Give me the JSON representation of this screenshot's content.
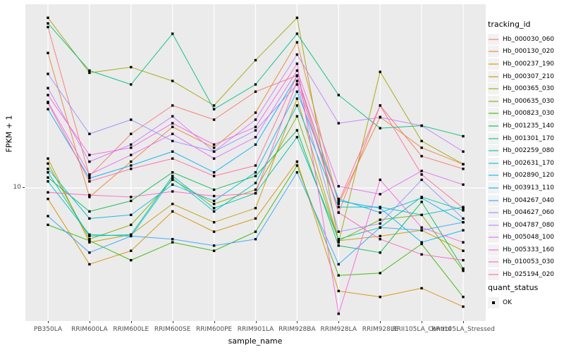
{
  "figure": {
    "panel": {
      "bg": "#EBEBEB",
      "grid_color": "#FFFFFF"
    },
    "x_axis": {
      "title": "sample_name",
      "tick_color": "#4D4D4D"
    },
    "y_axis": {
      "title": "FPKM + 1",
      "tick_label": "10",
      "tick_value": 10
    },
    "legend": {
      "tracking_title": "tracking_id",
      "quant_title": "quant_status",
      "quant_item_label": "OK",
      "key_bg": "#F2F2F2"
    }
  },
  "chart_data": {
    "type": "line",
    "title": "",
    "xlabel": "sample_name",
    "ylabel": "FPKM + 1",
    "yscale": "log10",
    "ytick_labels": [
      10
    ],
    "grid": "vertical-majors-and-y10",
    "legend_position": "right",
    "marker": {
      "shape": "square",
      "color": "#000000",
      "legend_label": "OK"
    },
    "categories": [
      "PB350LA",
      "RRIM600LA",
      "RRIM600LE",
      "RRIM600SE",
      "RRIM600PE",
      "RRIM901LA",
      "RRIM928BA",
      "RRIM928LA",
      "RRIM928LE",
      "RRII105LA_Control",
      "RRII105LA_Stressed"
    ],
    "series": [
      {
        "name": "Hb_000030_060",
        "color": "#F8766D",
        "values": [
          65.5,
          11.5,
          18.8,
          26.2,
          22.2,
          30.8,
          37.2,
          7.5,
          26.2,
          14.5,
          12.5
        ]
      },
      {
        "name": "Hb_000130_020",
        "color": "#EA8331",
        "values": [
          48.4,
          9.0,
          13.6,
          20.4,
          16.0,
          24.1,
          54.8,
          8.3,
          22.9,
          16.0,
          13.2
        ]
      },
      {
        "name": "Hb_000237_190",
        "color": "#D89000",
        "values": [
          8.8,
          4.1,
          4.8,
          7.6,
          6.0,
          7.0,
          13.6,
          3.0,
          2.8,
          3.1,
          2.5
        ]
      },
      {
        "name": "Hb_000307_210",
        "color": "#C09B00",
        "values": [
          14.1,
          5.3,
          5.8,
          8.3,
          6.7,
          7.9,
          28.4,
          5.4,
          5.7,
          6.1,
          4.8
        ]
      },
      {
        "name": "Hb_000365_030",
        "color": "#A3A500",
        "values": [
          73.0,
          38.4,
          41.0,
          34.9,
          26.2,
          44.5,
          73.0,
          5.3,
          38.8,
          17.3,
          13.2
        ]
      },
      {
        "name": "Hb_000635_030",
        "color": "#7CAE00",
        "values": [
          13.3,
          5.5,
          6.5,
          11.0,
          8.3,
          9.8,
          23.1,
          5.4,
          6.9,
          7.3,
          3.8
        ]
      },
      {
        "name": "Hb_000823_030",
        "color": "#39B600",
        "values": [
          6.5,
          5.4,
          4.3,
          5.3,
          4.8,
          6.0,
          13.0,
          3.6,
          3.7,
          5.2,
          2.8
        ]
      },
      {
        "name": "Hb_001235_140",
        "color": "#00BB4E",
        "values": [
          11.3,
          7.6,
          8.6,
          12.0,
          9.8,
          11.5,
          19.6,
          5.1,
          4.7,
          8.5,
          3.9
        ]
      },
      {
        "name": "Hb_001301_170",
        "color": "#00BF7D",
        "values": [
          68.4,
          39.4,
          33.5,
          60.6,
          25.1,
          33.5,
          60.6,
          29.6,
          20.1,
          20.7,
          18.3
        ]
      },
      {
        "name": "Hb_002259_080",
        "color": "#00C1A3",
        "values": [
          12.0,
          5.7,
          5.8,
          11.5,
          7.9,
          9.4,
          18.1,
          5.5,
          6.3,
          9.0,
          7.7
        ]
      },
      {
        "name": "Hb_002631_170",
        "color": "#00BFC4",
        "values": [
          10.8,
          5.8,
          5.7,
          11.2,
          7.6,
          10.6,
          26.2,
          8.0,
          8.0,
          7.3,
          8.0
        ]
      },
      {
        "name": "Hb_002890_120",
        "color": "#00BAE0",
        "values": [
          12.5,
          7.0,
          7.3,
          10.4,
          8.6,
          12.0,
          30.8,
          8.8,
          7.5,
          8.9,
          6.7
        ]
      },
      {
        "name": "Hb_003913_110",
        "color": "#00B0F6",
        "values": [
          25.1,
          11.2,
          13.0,
          15.3,
          12.0,
          16.6,
          37.0,
          8.6,
          7.9,
          5.3,
          6.1
        ]
      },
      {
        "name": "Hb_004267_040",
        "color": "#35A2FF",
        "values": [
          7.2,
          4.7,
          5.7,
          5.5,
          5.1,
          5.5,
          12.0,
          4.1,
          6.3,
          6.1,
          6.7
        ]
      },
      {
        "name": "Hb_004627_060",
        "color": "#9590FF",
        "values": [
          37.9,
          18.8,
          22.2,
          17.3,
          15.3,
          19.6,
          33.5,
          6.0,
          6.6,
          11.0,
          7.0
        ]
      },
      {
        "name": "Hb_004787_080",
        "color": "#C77CFF",
        "values": [
          32.1,
          13.6,
          16.6,
          23.1,
          15.3,
          22.2,
          47.5,
          21.3,
          22.8,
          20.7,
          15.3
        ]
      },
      {
        "name": "Hb_005048_100",
        "color": "#E76BF3",
        "values": [
          27.3,
          11.7,
          14.7,
          18.8,
          14.1,
          18.1,
          39.4,
          10.2,
          9.3,
          12.2,
          10.4
        ]
      },
      {
        "name": "Hb_005333_160",
        "color": "#FA62DB",
        "values": [
          29.6,
          14.7,
          16.0,
          21.3,
          16.6,
          20.4,
          42.7,
          2.3,
          11.0,
          6.3,
          5.3
        ]
      },
      {
        "name": "Hb_010053_030",
        "color": "#FF62BC",
        "values": [
          9.5,
          9.2,
          9.0,
          9.6,
          9.1,
          9.4,
          34.9,
          7.5,
          5.5,
          4.6,
          4.3
        ]
      },
      {
        "name": "Hb_025194_020",
        "color": "#FF6A98",
        "values": [
          27.0,
          10.8,
          12.5,
          14.1,
          11.5,
          13.0,
          37.2,
          8.5,
          26.2,
          11.7,
          7.9
        ]
      }
    ]
  }
}
